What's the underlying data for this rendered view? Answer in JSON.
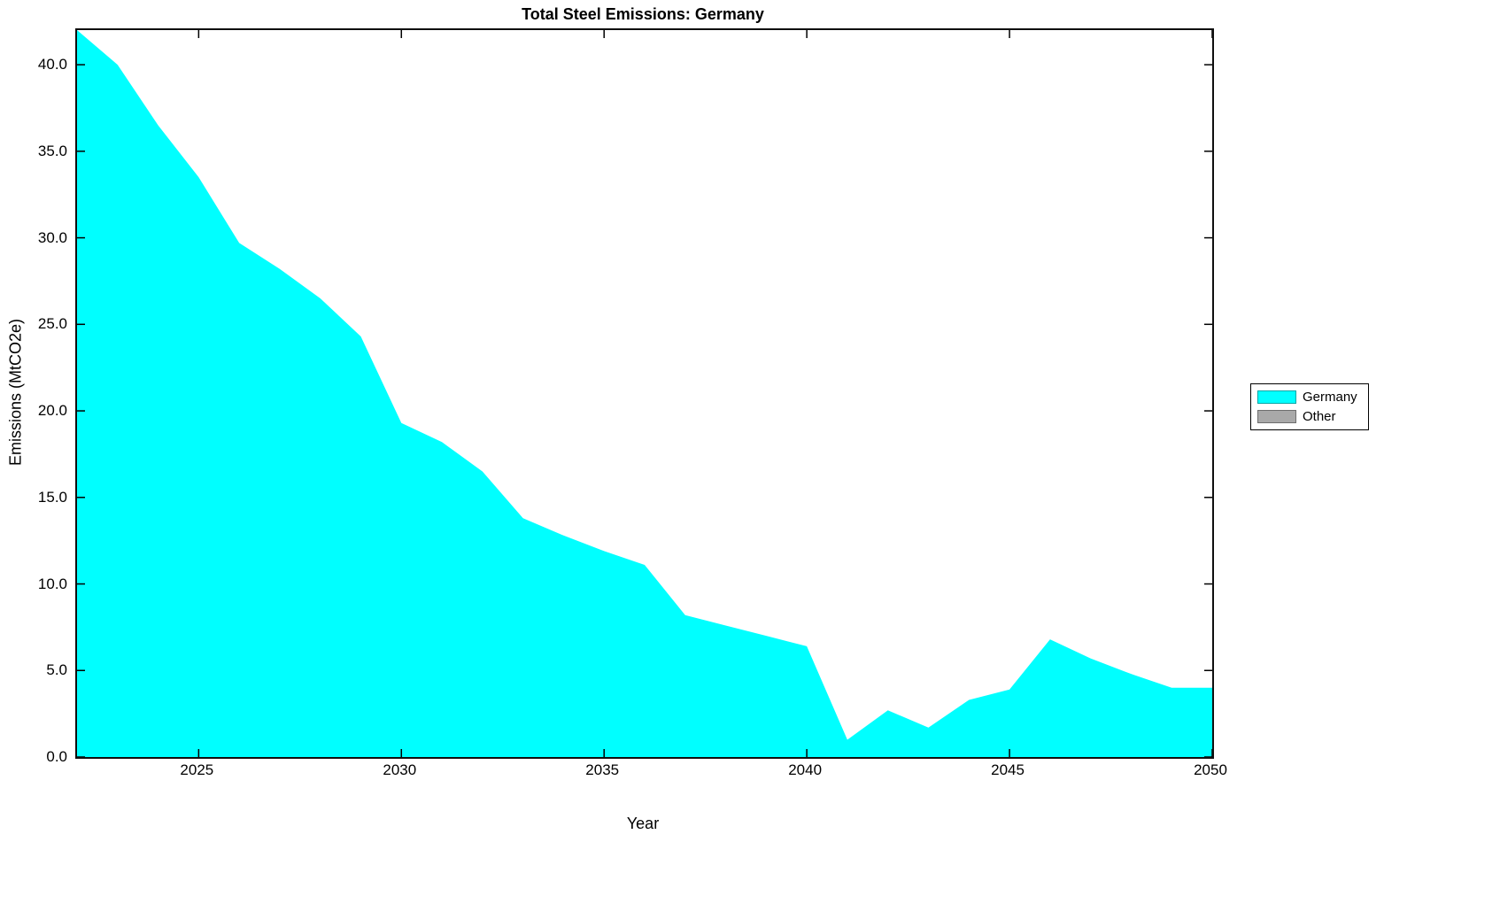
{
  "chart_data": {
    "type": "area",
    "title": "Total Steel Emissions: Germany",
    "xlabel": "Year",
    "ylabel": "Emissions (MtCO2e)",
    "xlim": [
      2022,
      2050
    ],
    "ylim": [
      0,
      42
    ],
    "grid": false,
    "legend_position": "right-outside",
    "xticks": [
      2025,
      2030,
      2035,
      2040,
      2045,
      2050
    ],
    "xtick_labels": [
      "2025",
      "2030",
      "2035",
      "2040",
      "2045",
      "2050"
    ],
    "yticks": [
      0,
      5,
      10,
      15,
      20,
      25,
      30,
      35,
      40
    ],
    "ytick_labels": [
      "0.0",
      "5.0",
      "10.0",
      "15.0",
      "20.0",
      "25.0",
      "30.0",
      "35.0",
      "40.0"
    ],
    "x": [
      2022,
      2023,
      2024,
      2025,
      2026,
      2027,
      2028,
      2029,
      2030,
      2031,
      2032,
      2033,
      2034,
      2035,
      2036,
      2037,
      2038,
      2039,
      2040,
      2041,
      2042,
      2043,
      2044,
      2045,
      2046,
      2047,
      2048,
      2049,
      2050
    ],
    "series": [
      {
        "name": "Germany",
        "color": "#00FFFF",
        "values": [
          42,
          40,
          36.5,
          33.5,
          29.7,
          28.2,
          26.5,
          24.3,
          19.3,
          18.2,
          16.5,
          13.8,
          12.8,
          11.9,
          11.1,
          8.2,
          7.6,
          7.0,
          6.4,
          1.0,
          2.7,
          1.7,
          3.3,
          3.9,
          6.8,
          5.7,
          4.8,
          4.0,
          4.0
        ]
      },
      {
        "name": "Other",
        "color": "#A9A9A9",
        "values": [
          0,
          0,
          0,
          0,
          0,
          0,
          0,
          0,
          0,
          0,
          0,
          0,
          0,
          0,
          0,
          0,
          0,
          0,
          0,
          0,
          0,
          0,
          0,
          0,
          0,
          0,
          0,
          0,
          0
        ]
      }
    ],
    "legend": [
      {
        "label": "Germany",
        "color": "#00FFFF"
      },
      {
        "label": "Other",
        "color": "#A9A9A9"
      }
    ],
    "axis_color": "#000000"
  }
}
